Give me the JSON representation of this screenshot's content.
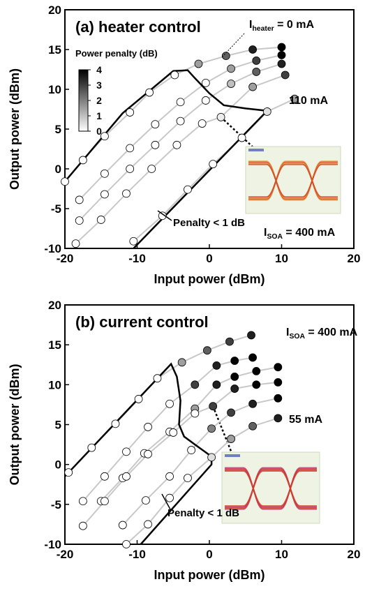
{
  "chart_data": [
    {
      "type": "line",
      "title": "(a) heater control",
      "xlabel": "Input power (dBm)",
      "ylabel": "Output power (dBm)",
      "xlim": [
        -20,
        20
      ],
      "ylim": [
        -10,
        20
      ],
      "xticks": [
        -20,
        -10,
        0,
        10,
        20
      ],
      "yticks": [
        -10,
        -5,
        0,
        5,
        10,
        15,
        20
      ],
      "series": [
        {
          "color": "#c8c8c8",
          "x": [
            -20,
            -17.5,
            -14.5,
            -11,
            -8.3,
            -4.8,
            -1.5,
            2.3,
            6,
            10
          ],
          "values": [
            -1.6,
            1.1,
            4.1,
            7.1,
            9.6,
            11.8,
            13.2,
            14.2,
            15,
            15.3
          ],
          "penalty": [
            0,
            0,
            0,
            0,
            0,
            0,
            1.5,
            2.5,
            3.5,
            4
          ]
        },
        {
          "color": "#c8c8c8",
          "x": [
            -18,
            -14.5,
            -11,
            -7.5,
            -4,
            -0.5,
            3,
            6.5,
            10
          ],
          "values": [
            -3.9,
            -0.6,
            2.6,
            5.6,
            8.4,
            10.8,
            12.6,
            13.6,
            14.3
          ],
          "penalty": [
            0,
            0,
            0,
            0,
            0,
            0,
            1.5,
            3,
            4
          ]
        },
        {
          "color": "#c8c8c8",
          "x": [
            -18,
            -14.5,
            -11,
            -7.5,
            -4,
            -0.5,
            3,
            6.5,
            10
          ],
          "values": [
            -6.5,
            -3.2,
            0,
            3,
            6,
            8.6,
            10.7,
            12.2,
            13.2
          ],
          "penalty": [
            0,
            0,
            0,
            0,
            0,
            0,
            1,
            2.5,
            3.5
          ]
        },
        {
          "color": "#c8c8c8",
          "x": [
            -18.5,
            -15,
            -11.5,
            -8,
            -4.5,
            -1,
            1.6,
            6,
            10.5
          ],
          "values": [
            -9.4,
            -6.4,
            -3.1,
            0,
            3,
            5.7,
            6.5,
            10.3,
            11.8
          ],
          "penalty": [
            0,
            0,
            0,
            0,
            0,
            0,
            0.3,
            1.5,
            3
          ]
        },
        {
          "color": "#c8c8c8",
          "x": [
            -10.5,
            -6.5,
            -3,
            0.5,
            4.5,
            8,
            11.8
          ],
          "values": [
            -9.1,
            -5.9,
            -2.6,
            0.6,
            3.9,
            7.2,
            8.8
          ],
          "penalty": [
            0,
            0,
            0,
            0,
            0,
            0.5,
            1.5
          ]
        }
      ],
      "boundary": [
        {
          "x": [
            -20,
            -12,
            -5,
            -3,
            -2,
            0,
            2,
            5,
            8
          ],
          "y": [
            -1.6,
            7,
            12.3,
            12.4,
            11.4,
            9.5,
            8,
            7.6,
            7.3
          ]
        },
        {
          "x": [
            8,
            -10.5
          ],
          "y": [
            7.3,
            -10
          ]
        }
      ],
      "boundary_label": "Penalty < 1 dB",
      "top_label": {
        "main": "I",
        "sub": "heater",
        "tail": " = 0 mA"
      },
      "bottom_label": "110 mA",
      "soa_label": {
        "main": "I",
        "sub": "SOA",
        "tail": " = 400 mA"
      },
      "colorbar": {
        "title": "Power penalty (dB)",
        "lim": [
          0,
          4
        ],
        "ticks": [
          0,
          1,
          2,
          3,
          4
        ]
      }
    },
    {
      "type": "line",
      "title": "(b) current control",
      "xlabel": "Input power (dBm)",
      "ylabel": "Output power (dBm)",
      "xlim": [
        -20,
        20
      ],
      "ylim": [
        -10,
        20
      ],
      "xticks": [
        -20,
        -10,
        0,
        10,
        20
      ],
      "yticks": [
        -10,
        -5,
        0,
        5,
        10,
        15,
        20
      ],
      "series": [
        {
          "color": "#c8c8c8",
          "x": [
            -19.5,
            -16.3,
            -13,
            -9.8,
            -7.2,
            -3.8,
            -0.3,
            2.8,
            5.8
          ],
          "values": [
            -1,
            2.1,
            5.1,
            8.2,
            10.8,
            12.8,
            14.3,
            15.4,
            16.2
          ],
          "penalty": [
            0,
            0,
            0,
            0,
            0,
            1.5,
            2.5,
            3,
            3.5
          ]
        },
        {
          "color": "#c8c8c8",
          "x": [
            -17.5,
            -14.5,
            -11.5,
            -8.5,
            -5.5,
            -2,
            1,
            3.5,
            6
          ],
          "values": [
            -4.6,
            -1.5,
            1.6,
            4.7,
            7.6,
            10,
            12.4,
            13,
            13.4
          ],
          "penalty": [
            0,
            0,
            0,
            0,
            0,
            3,
            3.5,
            4,
            4
          ]
        },
        {
          "color": "#c8c8c8",
          "x": [
            -15,
            -12,
            -9,
            -5.5,
            -2,
            1,
            3.5,
            6.5,
            9.5
          ],
          "values": [
            -4.6,
            -1.7,
            1.4,
            4.1,
            7,
            10,
            11,
            11.7,
            12.2
          ],
          "penalty": [
            0,
            0,
            0,
            0,
            1.5,
            3.5,
            4,
            4,
            4
          ]
        },
        {
          "color": "#c8c8c8",
          "x": [
            -17.5,
            -14.5,
            -11.5,
            -8.5,
            -5,
            -2,
            0.5,
            3.5,
            6.5,
            9.5
          ],
          "values": [
            -7.7,
            -4.6,
            -1.5,
            1.3,
            4,
            6.4,
            7.3,
            9.5,
            10,
            10.3
          ],
          "penalty": [
            0,
            0,
            0,
            0,
            0,
            0,
            3,
            3.5,
            4,
            4
          ]
        },
        {
          "color": "#c8c8c8",
          "x": [
            -12,
            -8.8,
            -5.5,
            -2.5,
            0.3,
            3,
            6,
            9.5
          ],
          "values": [
            -7.6,
            -4.5,
            -1.5,
            1.8,
            4.5,
            6.5,
            7.6,
            8.3
          ],
          "penalty": [
            0,
            0,
            0,
            0,
            2,
            3,
            3.5,
            4
          ]
        },
        {
          "color": "#c8c8c8",
          "x": [
            -11.5,
            -8.5,
            -5.5,
            -3,
            0.3,
            3,
            6,
            9.5
          ],
          "values": [
            -10,
            -7.5,
            -4.2,
            -1.7,
            0.9,
            3.2,
            4.8,
            5.8
          ],
          "penalty": [
            0,
            0,
            0,
            0,
            0.5,
            1.5,
            2.5,
            3.5
          ]
        }
      ],
      "boundary": [
        {
          "x": [
            -20,
            -5.3,
            -4.5,
            -4,
            -4.2,
            -3.5,
            -2,
            0.3
          ],
          "y": [
            -1.5,
            12.6,
            11,
            8,
            5,
            3.5,
            2.5,
            1
          ]
        },
        {
          "x": [
            0.3,
            0.3,
            -9.5
          ],
          "y": [
            1,
            0,
            -10
          ]
        }
      ],
      "boundary_label": "Penalty < 1 dB",
      "top_label": {
        "main": "I",
        "sub": "SOA",
        "tail": " = 400 mA"
      },
      "bottom_label": "55 mA"
    }
  ]
}
